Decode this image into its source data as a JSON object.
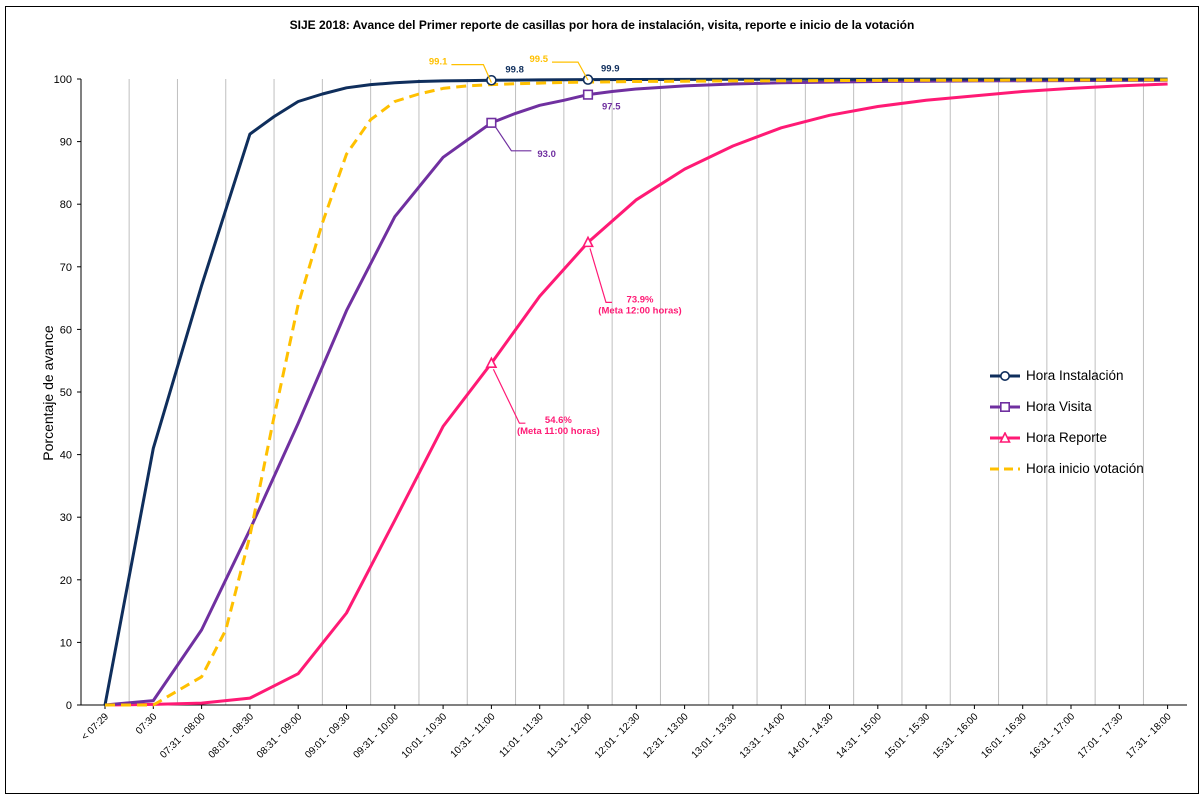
{
  "chart_data": {
    "type": "line",
    "title": "SIJE 2018: Avance del Primer reporte de casillas por hora de instalación, visita, reporte e inicio de la votación",
    "ylabel": "Porcentaje de avance",
    "xlabel": "",
    "ylim": [
      0,
      100
    ],
    "yticks": [
      "0",
      "10",
      "20",
      "30",
      "40",
      "50",
      "60",
      "70",
      "80",
      "90",
      "100"
    ],
    "grid": "vertical",
    "legend_position": "right",
    "categories": [
      "< 07:29",
      "07:30",
      "07:31 - 08:00",
      "08:01 - 08:30",
      "08:31 - 09:00",
      "09:01 - 09:30",
      "09:31 - 10:00",
      "10:01 - 10:30",
      "10:31 - 11:00",
      "11:01 - 11:30",
      "11:31 - 12:00",
      "12:01 - 12:30",
      "12:31 - 13:00",
      "13:01 - 13:30",
      "13:31 - 14:00",
      "14:01 - 14:30",
      "14:31 - 15:00",
      "15:01 - 15:30",
      "15:31 - 16:00",
      "16:01 - 16:30",
      "16:31 - 17:00",
      "17:01 - 17:30",
      "17:31 - 18:00"
    ],
    "x_positions": [
      0,
      1,
      2,
      3,
      4,
      5,
      6,
      7,
      8,
      9,
      10,
      11,
      12,
      13,
      14,
      15,
      16,
      17,
      18,
      19,
      20,
      21,
      22
    ],
    "series": [
      {
        "name": "Hora Instalación",
        "color": "#0f2e5c",
        "dash": false,
        "marker": "circle",
        "x": [
          0,
          1,
          2,
          3,
          3.5,
          4,
          4.5,
          5,
          5.5,
          6,
          6.5,
          7,
          7.5,
          8,
          8.5,
          9,
          9.5,
          10,
          11,
          12,
          13,
          14,
          15,
          16,
          17,
          18,
          19,
          20,
          21,
          22
        ],
        "y": [
          0,
          41,
          67,
          91.2,
          94,
          96.4,
          97.6,
          98.6,
          99.1,
          99.4,
          99.6,
          99.7,
          99.75,
          99.8,
          99.82,
          99.85,
          99.88,
          99.9,
          99.92,
          99.94,
          99.95,
          99.96,
          99.97,
          99.97,
          99.98,
          99.98,
          99.98,
          99.99,
          99.99,
          99.99
        ]
      },
      {
        "name": "Hora Visita",
        "color": "#7030a0",
        "dash": false,
        "marker": "square",
        "x": [
          0,
          1,
          2,
          3,
          4,
          5,
          6,
          7,
          8,
          8.5,
          9,
          9.5,
          10,
          10.5,
          11,
          12,
          13,
          14,
          15,
          16,
          17,
          18,
          19,
          20,
          21,
          22
        ],
        "y": [
          0,
          0.7,
          12,
          28,
          45,
          63,
          78,
          87.5,
          93,
          94.5,
          95.8,
          96.6,
          97.5,
          98,
          98.4,
          98.9,
          99.2,
          99.4,
          99.5,
          99.6,
          99.65,
          99.7,
          99.72,
          99.75,
          99.78,
          99.8
        ]
      },
      {
        "name": "Hora Reporte",
        "color": "#ff1a75",
        "dash": false,
        "marker": "triangle",
        "x": [
          0,
          1,
          2,
          3,
          4,
          5,
          6,
          7,
          8,
          9,
          10,
          11,
          12,
          13,
          14,
          15,
          16,
          17,
          18,
          19,
          20,
          21,
          22
        ],
        "y": [
          0,
          0.1,
          0.3,
          1.1,
          5,
          14.7,
          29.5,
          44.5,
          54.6,
          65.3,
          73.9,
          80.7,
          85.6,
          89.3,
          92.2,
          94.2,
          95.6,
          96.6,
          97.3,
          98,
          98.5,
          98.9,
          99.2
        ]
      },
      {
        "name": "Hora inicio votación",
        "color": "#ffc000",
        "dash": true,
        "marker": "none",
        "x": [
          0,
          1,
          2,
          2.5,
          3,
          3.5,
          4,
          4.5,
          5,
          5.5,
          6,
          6.5,
          7,
          7.5,
          8,
          8.5,
          9,
          9.5,
          10,
          10.5,
          11,
          12,
          13,
          14,
          15,
          16,
          17,
          18,
          19,
          20,
          21,
          22
        ],
        "y": [
          0,
          0,
          4.5,
          12,
          27,
          46,
          64,
          77,
          88,
          93.5,
          96.4,
          97.6,
          98.5,
          98.9,
          99.1,
          99.25,
          99.35,
          99.45,
          99.5,
          99.55,
          99.6,
          99.65,
          99.7,
          99.72,
          99.75,
          99.77,
          99.8,
          99.8,
          99.82,
          99.84,
          99.85,
          99.86
        ]
      }
    ],
    "markers": [
      {
        "series": 0,
        "x": 8,
        "y": 99.8
      },
      {
        "series": 0,
        "x": 10,
        "y": 99.9
      },
      {
        "series": 1,
        "x": 8,
        "y": 93
      },
      {
        "series": 1,
        "x": 10,
        "y": 97.5
      },
      {
        "series": 2,
        "x": 8,
        "y": 54.6
      },
      {
        "series": 2,
        "x": 10,
        "y": 73.9
      }
    ],
    "annotations": [
      {
        "text": "99.8",
        "color": "#0f2e5c",
        "x": 8,
        "y": 99.8
      },
      {
        "text": "99.9",
        "color": "#0f2e5c",
        "x": 10,
        "y": 99.9
      },
      {
        "text": "99.1",
        "color": "#ffc000",
        "x": 8,
        "y": 99.1
      },
      {
        "text": "99.5",
        "color": "#ffc000",
        "x": 10,
        "y": 99.5
      },
      {
        "text": "93.0",
        "color": "#7030a0",
        "x": 8,
        "y": 93
      },
      {
        "text": "97.5",
        "color": "#7030a0",
        "x": 10,
        "y": 97.5
      },
      {
        "text": "73.9%",
        "color": "#ff1a75",
        "x": 10,
        "y": 73.9
      },
      {
        "text": "(Meta 12:00 horas)",
        "color": "#ff1a75",
        "x": 10,
        "y": 73.9
      },
      {
        "text": "54.6%",
        "color": "#ff1a75",
        "x": 8,
        "y": 54.6
      },
      {
        "text": "(Meta 11:00 horas)",
        "color": "#ff1a75",
        "x": 8,
        "y": 54.6
      }
    ]
  }
}
